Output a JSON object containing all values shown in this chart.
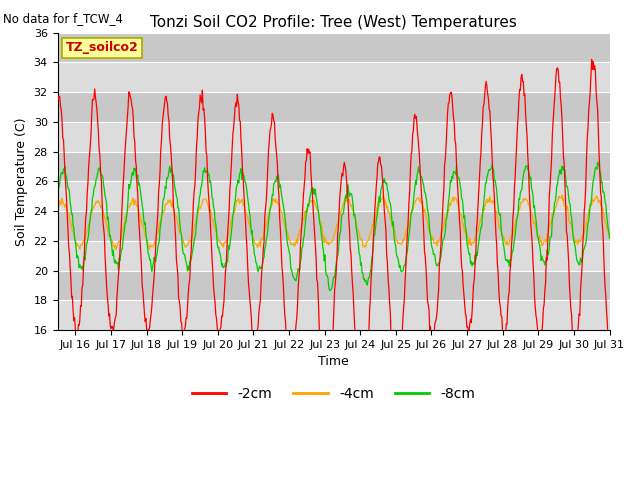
{
  "title": "Tonzi Soil CO2 Profile: Tree (West) Temperatures",
  "subtitle": "No data for f_TCW_4",
  "xlabel": "Time",
  "ylabel": "Soil Temperature (C)",
  "ylim": [
    16,
    36
  ],
  "yticks": [
    16,
    18,
    20,
    22,
    24,
    26,
    28,
    30,
    32,
    34,
    36
  ],
  "xtick_labels": [
    "Jul 16",
    "Jul 17",
    "Jul 18",
    "Jul 19",
    "Jul 20",
    "Jul 21",
    "Jul 22",
    "Jul 23",
    "Jul 24",
    "Jul 25",
    "Jul 26",
    "Jul 27",
    "Jul 28",
    "Jul 29",
    "Jul 30",
    "Jul 31"
  ],
  "line_colors": {
    "neg2cm": "#ff0000",
    "neg4cm": "#ffa500",
    "neg8cm": "#00cc00"
  },
  "line_labels": [
    "-2cm",
    "-4cm",
    "-8cm"
  ],
  "axes_bg": "#dcdcdc",
  "grid_color": "#ffffff",
  "fig_bg": "#ffffff",
  "legend_label": "TZ_soilco2",
  "legend_box_facecolor": "#ffff99",
  "legend_box_edgecolor": "#aaaa00",
  "day_start": 15.5,
  "day_end": 31.0
}
